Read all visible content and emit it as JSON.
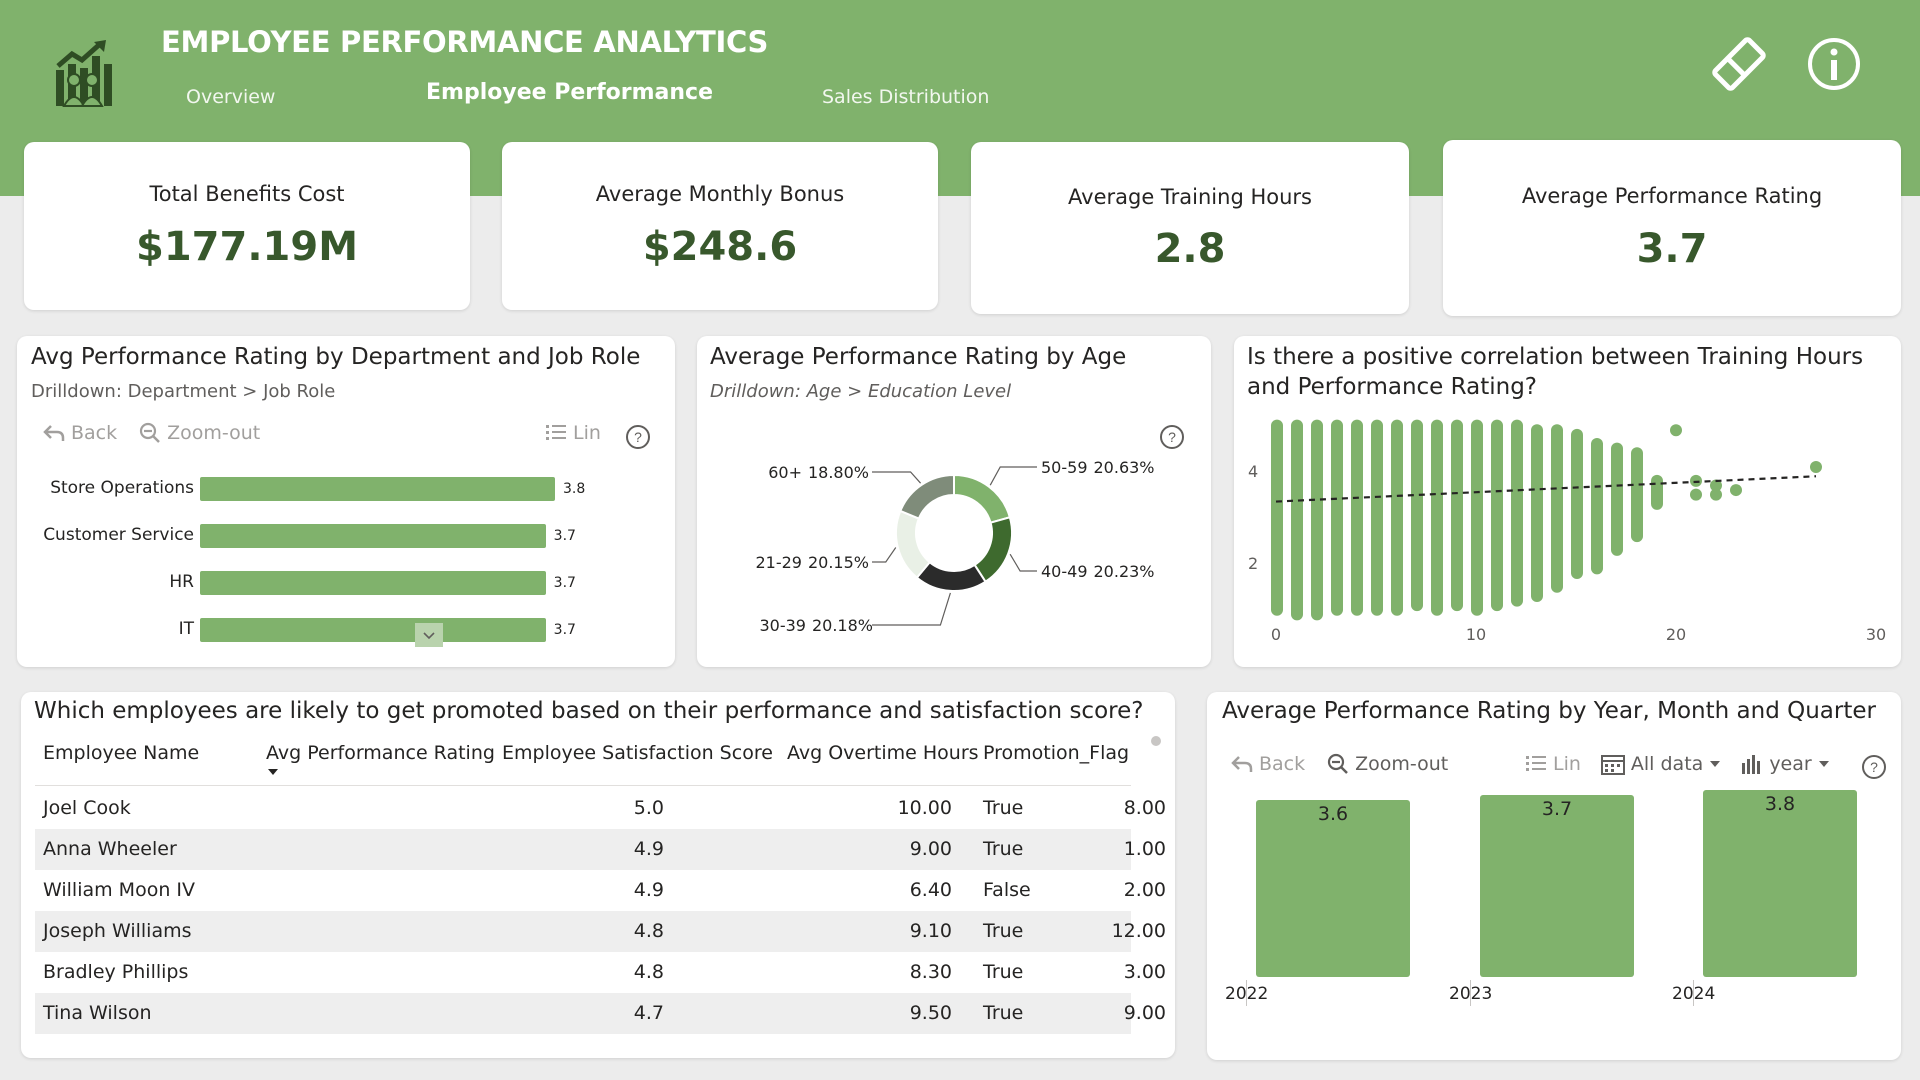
{
  "header": {
    "title": "EMPLOYEE PERFORMANCE ANALYTICS",
    "tabs": [
      {
        "label": "Overview"
      },
      {
        "label": "Employee Performance"
      },
      {
        "label": "Sales Distribution"
      }
    ],
    "logo_icon": "growth-team-icon",
    "icons": [
      "eraser-icon",
      "info-icon"
    ],
    "bg_color": "#80b26c"
  },
  "kpis": [
    {
      "label": "Total Benefits Cost",
      "value": "$177.19M"
    },
    {
      "label": "Average Monthly Bonus",
      "value": "$248.6"
    },
    {
      "label": "Average Training Hours",
      "value": "2.8"
    },
    {
      "label": "Average Performance Rating",
      "value": "3.7"
    }
  ],
  "dept_chart": {
    "title": "Avg Performance Rating by Department and Job Role",
    "subtitle": "Drilldown: Department > Job Role",
    "toolbar": {
      "back": "Back",
      "zoom": "Zoom-out",
      "lin": "Lin"
    }
  },
  "age_chart": {
    "title": "Average Performance Rating by Age",
    "subtitle": "Drilldown: Age > Education Level"
  },
  "scatter_chart": {
    "title_line1": "Is there a positive correlation between Training Hours",
    "title_line2": "and Performance Rating?"
  },
  "table": {
    "title": "Which employees are likely to get promoted based on their performance and satisfaction score?",
    "columns": [
      "Employee Name",
      "Avg Performance Rating",
      "Employee Satisfaction Score",
      "Avg Overtime Hours",
      "Promotion_Flag"
    ],
    "rows": [
      [
        "Joel Cook",
        "5.0",
        "10.00",
        "8.00",
        "True"
      ],
      [
        "Anna Wheeler",
        "4.9",
        "9.00",
        "1.00",
        "True"
      ],
      [
        "William Moon IV",
        "4.9",
        "6.40",
        "2.00",
        "False"
      ],
      [
        "Joseph Williams",
        "4.8",
        "9.10",
        "12.00",
        "True"
      ],
      [
        "Bradley Phillips",
        "4.8",
        "8.30",
        "3.00",
        "True"
      ],
      [
        "Tina Wilson",
        "4.7",
        "9.50",
        "9.00",
        "True"
      ]
    ]
  },
  "year_chart": {
    "title": "Average Performance Rating by Year, Month and Quarter",
    "toolbar": {
      "back": "Back",
      "zoom": "Zoom-out",
      "lin": "Lin",
      "filter": "All data",
      "level": "year"
    }
  },
  "chart_data": [
    {
      "type": "bar",
      "orientation": "horizontal",
      "categories": [
        "Store Operations",
        "Customer Service",
        "HR",
        "IT"
      ],
      "values": [
        3.8,
        3.7,
        3.7,
        3.7
      ],
      "data_labels": [
        "3.8",
        "3.7",
        "3.7",
        "3.7"
      ],
      "color": "#80b26c"
    },
    {
      "type": "pie",
      "style": "donut",
      "slices": [
        {
          "label": "50-59",
          "value": 20.63,
          "pct_label": "20.63%",
          "color": "#80b26c"
        },
        {
          "label": "40-49",
          "value": 20.23,
          "pct_label": "20.23%",
          "color": "#3e6a2e"
        },
        {
          "label": "30-39",
          "value": 20.18,
          "pct_label": "20.18%",
          "color": "#2b2b2b"
        },
        {
          "label": "21-29",
          "value": 20.15,
          "pct_label": "20.15%",
          "color": "#e9f0e6"
        },
        {
          "label": "60+",
          "value": 18.8,
          "pct_label": "18.80%",
          "color": "#7f8c7a"
        }
      ]
    },
    {
      "type": "scatter",
      "xlim": [
        0,
        30
      ],
      "ylim": [
        0.8,
        5.1
      ],
      "x_ticks": [
        "0",
        "10",
        "20",
        "30"
      ],
      "y_ticks": [
        "2",
        "4"
      ],
      "trendline": {
        "x0": 0,
        "y0": 3.35,
        "x1": 27,
        "y1": 3.9
      },
      "color": "#80b26c",
      "columns": [
        {
          "x": 0,
          "ymin": 1.0,
          "ymax": 5.0
        },
        {
          "x": 1,
          "ymin": 0.9,
          "ymax": 5.0
        },
        {
          "x": 2,
          "ymin": 0.9,
          "ymax": 5.0
        },
        {
          "x": 3,
          "ymin": 1.0,
          "ymax": 5.0
        },
        {
          "x": 4,
          "ymin": 1.0,
          "ymax": 5.0
        },
        {
          "x": 5,
          "ymin": 1.0,
          "ymax": 5.0
        },
        {
          "x": 6,
          "ymin": 1.0,
          "ymax": 5.0
        },
        {
          "x": 7,
          "ymin": 1.1,
          "ymax": 5.0
        },
        {
          "x": 8,
          "ymin": 1.0,
          "ymax": 5.0
        },
        {
          "x": 9,
          "ymin": 1.1,
          "ymax": 5.0
        },
        {
          "x": 10,
          "ymin": 1.0,
          "ymax": 5.0
        },
        {
          "x": 11,
          "ymin": 1.1,
          "ymax": 5.0
        },
        {
          "x": 12,
          "ymin": 1.2,
          "ymax": 5.0
        },
        {
          "x": 13,
          "ymin": 1.3,
          "ymax": 4.9
        },
        {
          "x": 14,
          "ymin": 1.5,
          "ymax": 4.9
        },
        {
          "x": 15,
          "ymin": 1.8,
          "ymax": 4.8
        },
        {
          "x": 16,
          "ymin": 1.9,
          "ymax": 4.6
        },
        {
          "x": 17,
          "ymin": 2.3,
          "ymax": 4.5
        },
        {
          "x": 18,
          "ymin": 2.6,
          "ymax": 4.4
        },
        {
          "x": 19,
          "ymin": 3.3,
          "ymax": 3.8
        }
      ],
      "points": [
        {
          "x": 20,
          "y": 4.9
        },
        {
          "x": 21,
          "y": 3.8
        },
        {
          "x": 21,
          "y": 3.5
        },
        {
          "x": 22,
          "y": 3.7
        },
        {
          "x": 22,
          "y": 3.5
        },
        {
          "x": 23,
          "y": 3.6
        },
        {
          "x": 27,
          "y": 4.1
        }
      ]
    },
    {
      "type": "bar",
      "categories": [
        "2022",
        "2023",
        "2024"
      ],
      "values": [
        3.6,
        3.7,
        3.8
      ],
      "data_labels": [
        "3.6",
        "3.7",
        "3.8"
      ],
      "color": "#80b26c"
    }
  ]
}
